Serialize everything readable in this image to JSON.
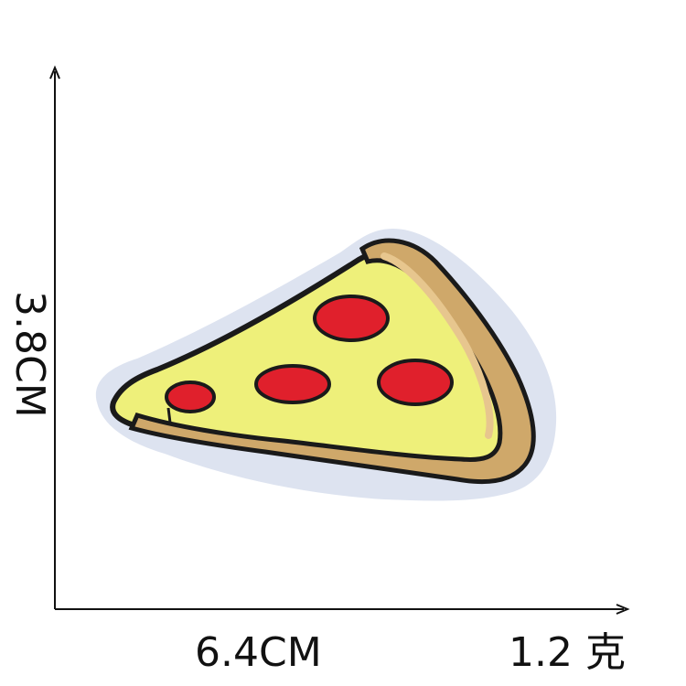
{
  "dimensions": {
    "width_label": "6.4CM",
    "height_label": "3.8CM",
    "weight_label": "1.2 克"
  },
  "product": {
    "icon": "pizza-slice-patch",
    "colors": {
      "backing": "#dde3f0",
      "outline": "#1a1a1a",
      "cheese": "#eef07a",
      "crust": "#cfa86a",
      "pepperoni": "#e0202c"
    }
  },
  "axes": {
    "color": "#111111"
  }
}
